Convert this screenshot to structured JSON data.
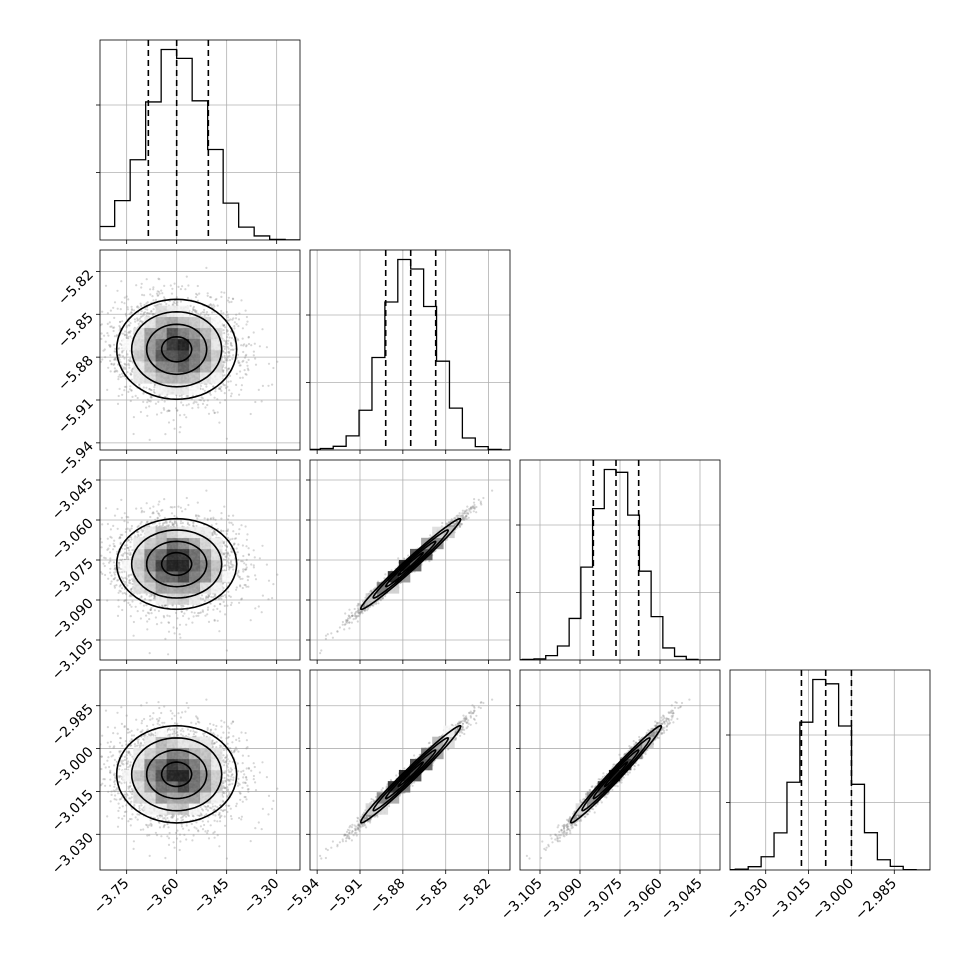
{
  "chart_data": {
    "type": "corner",
    "title": "",
    "parameters": [
      {
        "range": [
          -3.83,
          -3.23
        ],
        "ticks": [
          -3.75,
          -3.6,
          -3.45,
          -3.3
        ],
        "tick_labels": [
          "−3.75",
          "−3.60",
          "−3.45",
          "−3.30"
        ],
        "mean": -3.6,
        "sigma": 0.09,
        "quantiles": [
          -3.685,
          -3.6,
          -3.505
        ]
      },
      {
        "range": [
          -5.945,
          -5.805
        ],
        "ticks": [
          -5.94,
          -5.91,
          -5.88,
          -5.85,
          -5.82
        ],
        "tick_labels": [
          "−5.94",
          "−5.91",
          "−5.88",
          "−5.85",
          "−5.82"
        ],
        "mean": -5.8745,
        "sigma": 0.0175,
        "quantiles": [
          -5.892,
          -5.8745,
          -5.857
        ]
      },
      {
        "range": [
          -3.1125,
          -3.0375
        ],
        "ticks": [
          -3.105,
          -3.09,
          -3.075,
          -3.06,
          -3.045
        ],
        "tick_labels": [
          "−3.105",
          "−3.090",
          "−3.075",
          "−3.060",
          "−3.045"
        ],
        "mean": -3.0765,
        "sigma": 0.0085,
        "quantiles": [
          -3.085,
          -3.0765,
          -3.068
        ]
      },
      {
        "range": [
          -3.0425,
          -2.9725
        ],
        "ticks": [
          -3.03,
          -3.015,
          -3.0,
          -2.985
        ],
        "tick_labels": [
          "−3.030",
          "−3.015",
          "−3.000",
          "−2.985"
        ],
        "mean": -3.009,
        "sigma": 0.0085,
        "quantiles": [
          -3.0175,
          -3.009,
          -3.0
        ]
      }
    ],
    "correlation": [
      [
        1.0,
        0.0,
        0.0,
        0.0
      ],
      [
        0.0,
        1.0,
        0.985,
        0.985
      ],
      [
        0.0,
        0.985,
        1.0,
        0.985
      ],
      [
        0.0,
        0.985,
        0.985,
        1.0
      ]
    ],
    "histogram_bins": 20,
    "grid": true,
    "xlabels": [
      "",
      "",
      "",
      ""
    ],
    "ylabels": [
      "",
      "",
      "",
      ""
    ],
    "colors": {
      "line": "#000000",
      "grid": "#b0b0b0",
      "points": "#8a8a8a",
      "background": "#ffffff"
    }
  }
}
